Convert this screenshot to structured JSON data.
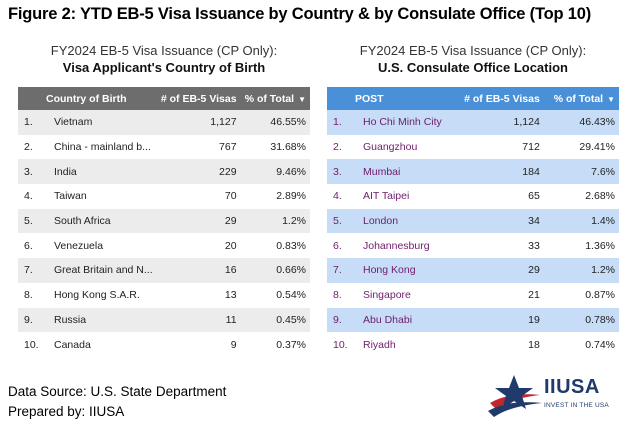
{
  "figure_title": "Figure 2: YTD EB-5 Visa Issuance by Country & by Consulate Office (Top 10)",
  "left_panel": {
    "subtitle": "FY2024 EB-5 Visa Issuance (CP Only):",
    "heading": "Visa Applicant's Country of Birth",
    "columns": [
      "Country of Birth",
      "# of EB-5 Visas",
      "% of Total"
    ],
    "rows": [
      {
        "idx": "1.",
        "name": "Vietnam",
        "visas": "1,127",
        "pct": "46.55%"
      },
      {
        "idx": "2.",
        "name": "China - mainland b...",
        "visas": "767",
        "pct": "31.68%"
      },
      {
        "idx": "3.",
        "name": "India",
        "visas": "229",
        "pct": "9.46%"
      },
      {
        "idx": "4.",
        "name": "Taiwan",
        "visas": "70",
        "pct": "2.89%"
      },
      {
        "idx": "5.",
        "name": "South Africa",
        "visas": "29",
        "pct": "1.2%"
      },
      {
        "idx": "6.",
        "name": "Venezuela",
        "visas": "20",
        "pct": "0.83%"
      },
      {
        "idx": "7.",
        "name": "Great Britain and N...",
        "visas": "16",
        "pct": "0.66%"
      },
      {
        "idx": "8.",
        "name": "Hong Kong S.A.R.",
        "visas": "13",
        "pct": "0.54%"
      },
      {
        "idx": "9.",
        "name": "Russia",
        "visas": "11",
        "pct": "0.45%"
      },
      {
        "idx": "10.",
        "name": "Canada",
        "visas": "9",
        "pct": "0.37%"
      }
    ]
  },
  "right_panel": {
    "subtitle": "FY2024 EB-5 Visa Issuance (CP Only):",
    "heading": "U.S. Consulate Office Location",
    "columns": [
      "POST",
      "# of EB-5 Visas",
      "% of Total"
    ],
    "rows": [
      {
        "idx": "1.",
        "name": "Ho Chi Minh City",
        "visas": "1,124",
        "pct": "46.43%"
      },
      {
        "idx": "2.",
        "name": "Guangzhou",
        "visas": "712",
        "pct": "29.41%"
      },
      {
        "idx": "3.",
        "name": "Mumbai",
        "visas": "184",
        "pct": "7.6%"
      },
      {
        "idx": "4.",
        "name": "AIT Taipei",
        "visas": "65",
        "pct": "2.68%"
      },
      {
        "idx": "5.",
        "name": "London",
        "visas": "34",
        "pct": "1.4%"
      },
      {
        "idx": "6.",
        "name": "Johannesburg",
        "visas": "33",
        "pct": "1.36%"
      },
      {
        "idx": "7.",
        "name": "Hong Kong",
        "visas": "29",
        "pct": "1.2%"
      },
      {
        "idx": "8.",
        "name": "Singapore",
        "visas": "21",
        "pct": "0.87%"
      },
      {
        "idx": "9.",
        "name": "Abu Dhabi",
        "visas": "19",
        "pct": "0.78%"
      },
      {
        "idx": "10.",
        "name": "Riyadh",
        "visas": "18",
        "pct": "0.74%"
      }
    ]
  },
  "footer": {
    "source": "Data Source: U.S. State Department",
    "prepared": "Prepared by: IIUSA"
  },
  "logo": {
    "name": "IIUSA",
    "tagline": "INVEST IN THE USA",
    "icon": "star-swoosh-logo-icon"
  },
  "colors": {
    "left_header": "#6d6d6d",
    "right_header": "#4a90d9",
    "right_row_highlight": "#c6dcf7",
    "right_text": "#6e1d6b",
    "logo_navy": "#1f3a6b",
    "logo_red": "#c0282d"
  }
}
